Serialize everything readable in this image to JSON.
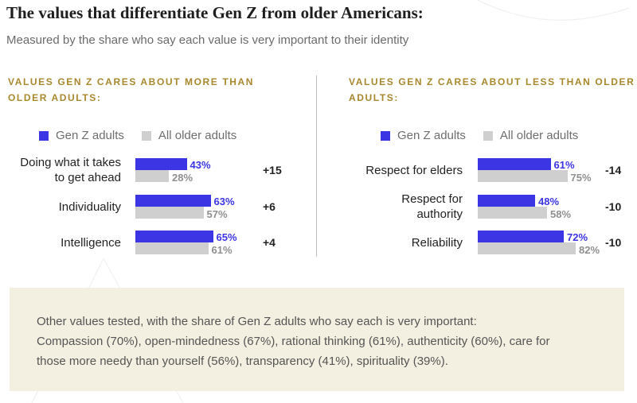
{
  "title": "The values that differentiate Gen Z from older Americans:",
  "subtitle": "Measured by the share who say each value is very important to their identity",
  "colors": {
    "genz": "#3b35e4",
    "older": "#cfcfcf",
    "accent": "#a8882e",
    "note_bg": "#f3efe1"
  },
  "legend": {
    "genz": "Gen Z adults",
    "older": "All older adults"
  },
  "chart_data": [
    {
      "type": "bar",
      "title": "VALUES GEN Z CARES ABOUT MORE THAN OLDER ADULTS:",
      "categories": [
        "Doing what it takes to get ahead",
        "Individuality",
        "Intelligence"
      ],
      "category_lines": [
        [
          "Doing what it takes",
          "to get ahead"
        ],
        [
          "Individuality"
        ],
        [
          "Intelligence"
        ]
      ],
      "series": [
        {
          "name": "Gen Z adults",
          "values": [
            43,
            63,
            65
          ]
        },
        {
          "name": "All older adults",
          "values": [
            28,
            57,
            61
          ]
        }
      ],
      "differences": [
        "+15",
        "+6",
        "+4"
      ],
      "unit": "%",
      "ylim": [
        0,
        100
      ]
    },
    {
      "type": "bar",
      "title": "VALUES GEN Z CARES ABOUT LESS THAN OLDER ADULTS:",
      "categories": [
        "Respect for elders",
        "Respect for authority",
        "Reliability"
      ],
      "category_lines": [
        [
          "Respect for elders"
        ],
        [
          "Respect for",
          "authority"
        ],
        [
          "Reliability"
        ]
      ],
      "series": [
        {
          "name": "Gen Z adults",
          "values": [
            61,
            48,
            72
          ]
        },
        {
          "name": "All older adults",
          "values": [
            75,
            58,
            82
          ]
        }
      ],
      "differences": [
        "-14",
        "-10",
        "-10"
      ],
      "unit": "%",
      "ylim": [
        0,
        100
      ]
    }
  ],
  "note": {
    "lines": [
      "Other values tested, with the share of Gen Z adults who say each is very important:",
      "Compassion (70%), open-mindedness (67%), rational thinking (61%), authenticity (60%), care for",
      "those more needy than yourself (56%), transparency (41%), spirituality (39%)."
    ]
  }
}
